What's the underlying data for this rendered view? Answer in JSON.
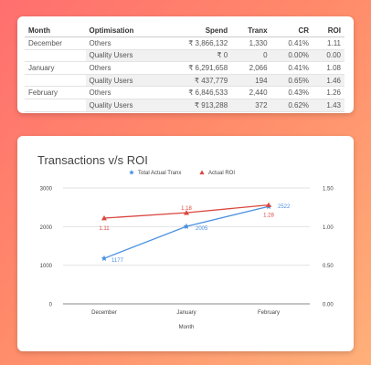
{
  "table": {
    "headers": [
      "Month",
      "Optimisation",
      "Spend",
      "Tranx",
      "CR",
      "ROI"
    ],
    "rows": [
      {
        "month": "December",
        "optimisation": "Others",
        "spend": "₹ 3,866,132",
        "tranx": "1,330",
        "cr": "0.41%",
        "roi": "1.11"
      },
      {
        "month": "",
        "optimisation": "Quality Users",
        "spend": "₹ 0",
        "tranx": "0",
        "cr": "0.00%",
        "roi": "0.00"
      },
      {
        "month": "January",
        "optimisation": "Others",
        "spend": "₹ 6,291,658",
        "tranx": "2,066",
        "cr": "0.41%",
        "roi": "1.08"
      },
      {
        "month": "",
        "optimisation": "Quality Users",
        "spend": "₹ 437,779",
        "tranx": "194",
        "cr": "0.65%",
        "roi": "1.46"
      },
      {
        "month": "February",
        "optimisation": "Others",
        "spend": "₹ 6,846,533",
        "tranx": "2,440",
        "cr": "0.43%",
        "roi": "1.26"
      },
      {
        "month": "",
        "optimisation": "Quality Users",
        "spend": "₹ 913,288",
        "tranx": "372",
        "cr": "0.62%",
        "roi": "1.43"
      }
    ]
  },
  "chart_data": {
    "type": "line",
    "title": "Transactions v/s ROI",
    "xlabel": "Month",
    "categories": [
      "December",
      "January",
      "February"
    ],
    "series": [
      {
        "name": "Total Actual Tranx",
        "axis": "left",
        "values": [
          1177,
          2005,
          2522
        ],
        "labels": [
          "1177",
          "2005",
          "2522"
        ],
        "color": "#4a90e2",
        "marker": "star"
      },
      {
        "name": "Actual ROI",
        "axis": "right",
        "values": [
          1.11,
          1.18,
          1.28
        ],
        "labels": [
          "1.11",
          "1.18",
          "1.28"
        ],
        "color": "#d9473f",
        "marker": "triangle"
      }
    ],
    "y_left": {
      "range": [
        0,
        3000
      ],
      "ticks": [
        0,
        1000,
        2000,
        3000
      ],
      "tick_labels": [
        "0",
        "1000",
        "2000",
        "3000"
      ]
    },
    "y_right": {
      "range": [
        0,
        1.5
      ],
      "ticks": [
        0,
        0.5,
        1.0,
        1.5
      ],
      "tick_labels": [
        "0.00",
        "0.50",
        "1.00",
        "1.50"
      ]
    },
    "legend": "top-center",
    "grid": true
  }
}
